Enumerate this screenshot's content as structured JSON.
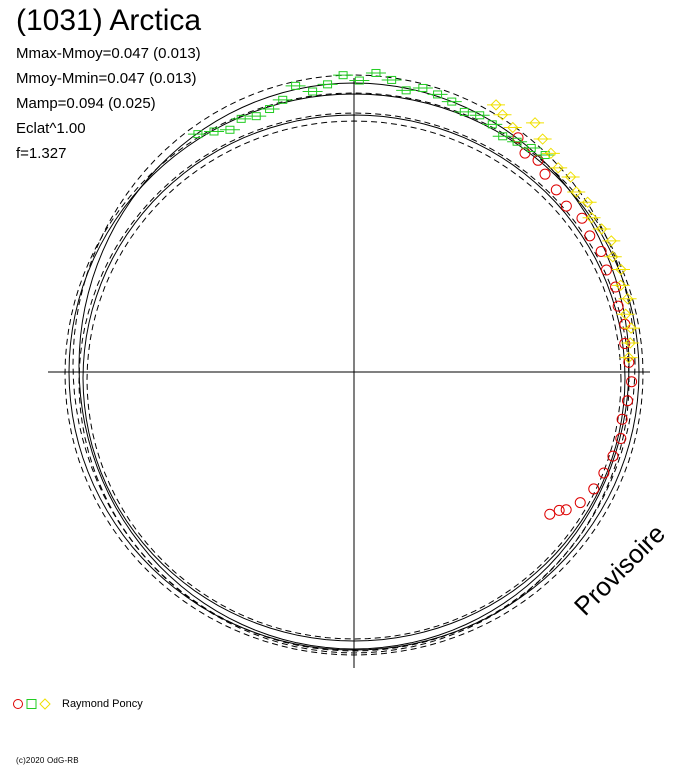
{
  "header": {
    "title": "(1031) Arctica",
    "stats": [
      "Mmax-Mmoy=0.047 (0.013)",
      "Mmoy-Mmin=0.047 (0.013)",
      "Mamp=0.094 (0.025)",
      "Eclat^1.00",
      "f=1.327"
    ]
  },
  "legend": {
    "observer": "Raymond Poncy"
  },
  "watermark": "Provisoire",
  "copyright": "(c)2020 OdG-RB",
  "colors": {
    "red": "#dd0000",
    "green": "#22cc22",
    "yellow": "#f0e000",
    "axis": "#000000"
  },
  "chart_data": {
    "type": "scatter",
    "title": "(1031) Arctica",
    "polar": true,
    "description_keys": [
      "angle_deg",
      "radius_rel"
    ],
    "model_curves": {
      "solid": [
        "mean",
        "mean+0.047",
        "mean-0.047"
      ],
      "dashed": [
        "uncertainty bounds"
      ]
    },
    "series": [
      {
        "name": "Raymond Poncy",
        "marker": "circle",
        "color": "red",
        "points": [
          [
            55,
            0.04
          ],
          [
            52,
            0.01
          ],
          [
            49,
            0.02
          ],
          [
            46,
            0.0
          ],
          [
            42,
            -0.01
          ],
          [
            38,
            -0.02
          ],
          [
            34,
            0.0
          ],
          [
            30,
            -0.01
          ],
          [
            26,
            0.0
          ],
          [
            22,
            -0.01
          ],
          [
            18,
            0.0
          ],
          [
            14,
            -0.01
          ],
          [
            10,
            0.0
          ],
          [
            6,
            -0.01
          ],
          [
            2,
            0.0
          ],
          [
            -2,
            0.01
          ],
          [
            -6,
            0.0
          ],
          [
            -10,
            -0.01
          ],
          [
            -14,
            0.0
          ],
          [
            -18,
            -0.01
          ],
          [
            -22,
            -0.02
          ],
          [
            -26,
            -0.03
          ],
          [
            -30,
            -0.05
          ],
          [
            -33,
            -0.08
          ],
          [
            -34,
            -0.1
          ],
          [
            -36,
            -0.12
          ]
        ]
      },
      {
        "name": "Raymond Poncy",
        "marker": "square",
        "color": "green",
        "points": [
          [
            130,
            0.03
          ],
          [
            127,
            0.02
          ],
          [
            124,
            0.01
          ],
          [
            121,
            0.0
          ],
          [
            118,
            0.02
          ],
          [
            115,
            0.03
          ],
          [
            112,
            0.02
          ],
          [
            109,
            0.04
          ],
          [
            106,
            0.05
          ],
          [
            103,
            0.06
          ],
          [
            100,
            0.04
          ],
          [
            97,
            0.07
          ],
          [
            94,
            0.09
          ],
          [
            91,
            0.06
          ],
          [
            88,
            0.08
          ],
          [
            85,
            0.05
          ],
          [
            82,
            0.03
          ],
          [
            79,
            0.06
          ],
          [
            76,
            0.02
          ],
          [
            73,
            0.0
          ],
          [
            70,
            -0.01
          ],
          [
            67,
            0.0
          ],
          [
            64,
            -0.02
          ],
          [
            61,
            0.0
          ],
          [
            58,
            0.02
          ]
        ]
      },
      {
        "name": "Raymond Poncy",
        "marker": "diamond",
        "color": "yellow",
        "points": [
          [
            62,
            0.1
          ],
          [
            60,
            0.08
          ],
          [
            57,
            0.06
          ],
          [
            54,
            0.12
          ],
          [
            51,
            0.09
          ],
          [
            48,
            0.07
          ],
          [
            45,
            0.05
          ],
          [
            42,
            0.06
          ],
          [
            39,
            0.04
          ],
          [
            36,
            0.05
          ],
          [
            33,
            0.03
          ],
          [
            30,
            0.04
          ],
          [
            27,
            0.05
          ],
          [
            24,
            0.03
          ],
          [
            21,
            0.04
          ],
          [
            18,
            0.02
          ],
          [
            15,
            0.03
          ],
          [
            12,
            0.01
          ],
          [
            9,
            0.02
          ],
          [
            6,
            0.01
          ],
          [
            3,
            0.0
          ]
        ]
      }
    ]
  }
}
